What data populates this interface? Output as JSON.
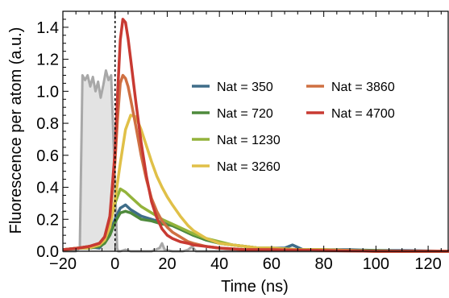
{
  "chart_data": {
    "type": "line",
    "xlabel": "Time (ns)",
    "ylabel": "Fluorescence per atom (a.u.)",
    "xlim": [
      -20,
      128
    ],
    "ylim": [
      0,
      1.5
    ],
    "xticks": [
      -20,
      0,
      20,
      40,
      60,
      80,
      100,
      120
    ],
    "yticks": [
      0.0,
      0.2,
      0.4,
      0.6,
      0.8,
      1.0,
      1.2,
      1.4
    ],
    "xtick_labels": [
      "−20",
      "0",
      "20",
      "40",
      "60",
      "80",
      "100",
      "120"
    ],
    "ytick_labels": [
      "0.0",
      "0.2",
      "0.4",
      "0.6",
      "0.8",
      "1.0",
      "1.2",
      "1.4"
    ],
    "grid": false,
    "legend_placement": "top-right",
    "reference_line_x": 0,
    "excitation_pulse": {
      "color": "#a8a8a8",
      "fill": "#e3e3e3",
      "x": [
        -20,
        -15,
        -13.5,
        -12.5,
        -11.5,
        -10.5,
        -9.5,
        -8.5,
        -7.5,
        -6.5,
        -5.5,
        -4.5,
        -3.5,
        -2.5,
        -1.5,
        -0.5,
        0.3,
        0.8,
        1.2,
        2,
        4,
        6,
        10,
        14,
        17,
        18,
        19,
        22,
        26,
        28,
        29.5,
        31,
        34,
        40,
        60,
        128
      ],
      "y": [
        0.0,
        0.0,
        0.02,
        1.1,
        1.07,
        1.1,
        1.03,
        1.09,
        1.0,
        1.06,
        0.96,
        1.04,
        1.13,
        1.07,
        1.1,
        0.65,
        0.28,
        0.02,
        0.0,
        0.0,
        0.01,
        0.0,
        0.0,
        0.0,
        0.02,
        0.05,
        0.01,
        0.0,
        0.0,
        0.01,
        0.03,
        0.0,
        0.0,
        0.0,
        0.0,
        0.0
      ]
    },
    "series": [
      {
        "name": "Nat = 350",
        "color": "#3f6d89",
        "x": [
          -20,
          -14,
          -10,
          -6,
          -4,
          -2,
          0,
          2,
          4,
          6,
          8,
          10,
          14,
          18,
          22,
          26,
          30,
          35,
          40,
          45,
          50,
          55,
          60,
          65,
          68,
          72,
          80,
          90,
          100,
          110,
          128
        ],
        "y": [
          0.01,
          0.02,
          0.03,
          0.02,
          0.06,
          0.12,
          0.2,
          0.27,
          0.29,
          0.26,
          0.24,
          0.22,
          0.2,
          0.18,
          0.16,
          0.13,
          0.1,
          0.07,
          0.05,
          0.04,
          0.03,
          0.02,
          0.02,
          0.02,
          0.04,
          0.01,
          0.01,
          0.01,
          0.005,
          0.005,
          0.0
        ]
      },
      {
        "name": "Nat = 720",
        "color": "#4e8a3c",
        "x": [
          -20,
          -14,
          -10,
          -6,
          -4,
          -2,
          0,
          2,
          4,
          6,
          8,
          10,
          14,
          18,
          22,
          26,
          30,
          35,
          40,
          45,
          50,
          55,
          60,
          70,
          80,
          90,
          100,
          110,
          128
        ],
        "y": [
          0.01,
          0.02,
          0.02,
          0.03,
          0.05,
          0.1,
          0.18,
          0.24,
          0.25,
          0.24,
          0.22,
          0.2,
          0.19,
          0.17,
          0.16,
          0.13,
          0.1,
          0.07,
          0.05,
          0.04,
          0.03,
          0.02,
          0.02,
          0.01,
          0.01,
          0.005,
          0.005,
          0.0,
          0.0
        ]
      },
      {
        "name": "Nat = 1230",
        "color": "#93b33b",
        "x": [
          -20,
          -14,
          -10,
          -6,
          -4,
          -2,
          0,
          2,
          4,
          6,
          8,
          10,
          14,
          18,
          22,
          26,
          30,
          35,
          40,
          45,
          50,
          55,
          60,
          70,
          80,
          90,
          100,
          110,
          128
        ],
        "y": [
          0.01,
          0.02,
          0.03,
          0.04,
          0.08,
          0.17,
          0.3,
          0.39,
          0.37,
          0.34,
          0.31,
          0.28,
          0.24,
          0.2,
          0.17,
          0.14,
          0.11,
          0.08,
          0.06,
          0.04,
          0.03,
          0.02,
          0.02,
          0.01,
          0.01,
          0.005,
          0.0,
          0.0,
          0.0
        ]
      },
      {
        "name": "Nat = 3260",
        "color": "#e0c048",
        "x": [
          -20,
          -14,
          -10,
          -6,
          -4,
          -2,
          0,
          2,
          4,
          6,
          8,
          10,
          12,
          14,
          16,
          18,
          20,
          22,
          25,
          28,
          30,
          35,
          40,
          45,
          50,
          55,
          60,
          70,
          80,
          90,
          100,
          128
        ],
        "y": [
          0.01,
          0.02,
          0.02,
          0.04,
          0.07,
          0.15,
          0.32,
          0.55,
          0.76,
          0.85,
          0.84,
          0.76,
          0.66,
          0.56,
          0.47,
          0.4,
          0.34,
          0.29,
          0.22,
          0.16,
          0.13,
          0.08,
          0.05,
          0.04,
          0.03,
          0.02,
          0.02,
          0.01,
          0.01,
          0.005,
          0.0,
          0.0
        ]
      },
      {
        "name": "Nat = 3860",
        "color": "#cf7042",
        "x": [
          -20,
          -14,
          -10,
          -6,
          -4,
          -2,
          0,
          1,
          2,
          3,
          4,
          5,
          6,
          8,
          10,
          12,
          14,
          16,
          18,
          20,
          22,
          25,
          28,
          30,
          35,
          40,
          50,
          60,
          80,
          100,
          128
        ],
        "y": [
          0.01,
          0.02,
          0.03,
          0.05,
          0.09,
          0.21,
          0.56,
          0.84,
          1.05,
          1.1,
          1.08,
          1.03,
          0.95,
          0.78,
          0.6,
          0.45,
          0.33,
          0.25,
          0.19,
          0.15,
          0.12,
          0.09,
          0.06,
          0.05,
          0.03,
          0.02,
          0.01,
          0.01,
          0.005,
          0.0,
          0.0
        ]
      },
      {
        "name": "Nat = 4700",
        "color": "#c83a32",
        "x": [
          -20,
          -14,
          -10,
          -6,
          -4,
          -2,
          0,
          1,
          2,
          3,
          4,
          5,
          6,
          8,
          10,
          12,
          14,
          16,
          18,
          20,
          22,
          25,
          28,
          30,
          35,
          40,
          50,
          60,
          80,
          100,
          128
        ],
        "y": [
          0.01,
          0.02,
          0.03,
          0.05,
          0.09,
          0.22,
          0.62,
          1.0,
          1.32,
          1.45,
          1.43,
          1.33,
          1.2,
          0.93,
          0.68,
          0.47,
          0.31,
          0.21,
          0.14,
          0.1,
          0.08,
          0.06,
          0.05,
          0.04,
          0.03,
          0.02,
          0.01,
          0.01,
          0.005,
          0.0,
          0.0
        ]
      }
    ]
  }
}
